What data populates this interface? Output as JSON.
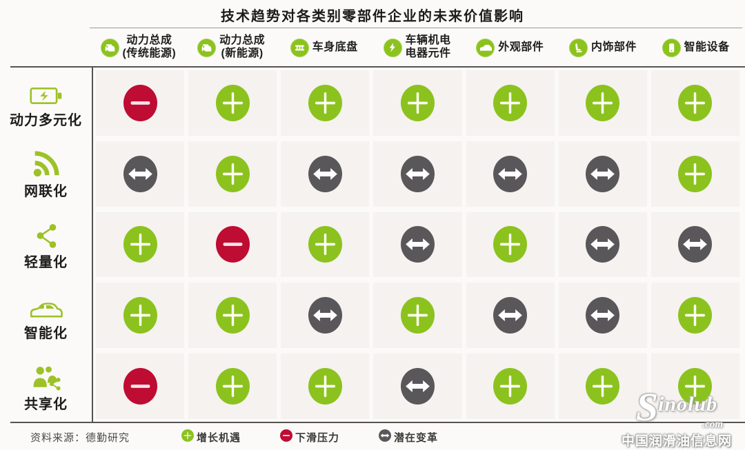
{
  "title": "技术趋势对各类别零部件企业的未来价值影响",
  "colors": {
    "green": "#8CC21E",
    "red": "#BE0C33",
    "gray": "#59575A",
    "icon_green": "#9CC227"
  },
  "table": {
    "columns": [
      {
        "icon": "engine-traditional-icon",
        "lines": [
          "动力总成",
          "(传统能源)"
        ]
      },
      {
        "icon": "engine-new-energy-icon",
        "lines": [
          "动力总成",
          "(新能源)"
        ]
      },
      {
        "icon": "chassis-icon",
        "lines": [
          "车身底盘"
        ]
      },
      {
        "icon": "electronics-icon",
        "lines": [
          "车辆机电",
          "电器元件"
        ]
      },
      {
        "icon": "exterior-parts-icon",
        "lines": [
          "外观部件"
        ]
      },
      {
        "icon": "interior-parts-icon",
        "lines": [
          "内饰部件"
        ]
      },
      {
        "icon": "smart-device-icon",
        "lines": [
          "智能设备"
        ]
      }
    ],
    "rows": [
      {
        "icon": "battery-icon",
        "label": "动力多元化"
      },
      {
        "icon": "wifi-icon",
        "label": "网联化"
      },
      {
        "icon": "lightweight-icon",
        "label": "轻量化"
      },
      {
        "icon": "smart-car-icon",
        "label": "智能化"
      },
      {
        "icon": "sharing-icon",
        "label": "共享化"
      }
    ],
    "matrix": [
      [
        "minus",
        "plus",
        "plus",
        "plus",
        "plus",
        "plus",
        "plus"
      ],
      [
        "change",
        "plus",
        "change",
        "change",
        "change",
        "change",
        "plus"
      ],
      [
        "plus",
        "minus",
        "plus",
        "change",
        "plus",
        "change",
        "change"
      ],
      [
        "plus",
        "plus",
        "change",
        "plus",
        "change",
        "change",
        "plus"
      ],
      [
        "minus",
        "plus",
        "plus",
        "change",
        "plus",
        "plus",
        "plus"
      ]
    ]
  },
  "legend": [
    {
      "symbol": "plus",
      "label": "增长机遇"
    },
    {
      "symbol": "minus",
      "label": "下滑压力"
    },
    {
      "symbol": "change",
      "label": "潜在变革"
    }
  ],
  "source": "资料来源：德勤研究",
  "watermark": {
    "brand_initial": "S",
    "brand_rest": "inolub",
    "domain": ".com",
    "caption": "中国润滑油信息网"
  },
  "chart_data": {
    "type": "table",
    "title": "技术趋势对各类别零部件企业的未来价值影响",
    "columns": [
      "动力总成(传统能源)",
      "动力总成(新能源)",
      "车身底盘",
      "车辆机电电器元件",
      "外观部件",
      "内饰部件",
      "智能设备"
    ],
    "rows": [
      "动力多元化",
      "网联化",
      "轻量化",
      "智能化",
      "共享化"
    ],
    "values": [
      [
        "下滑压力",
        "增长机遇",
        "增长机遇",
        "增长机遇",
        "增长机遇",
        "增长机遇",
        "增长机遇"
      ],
      [
        "潜在变革",
        "增长机遇",
        "潜在变革",
        "潜在变革",
        "潜在变革",
        "潜在变革",
        "增长机遇"
      ],
      [
        "增长机遇",
        "下滑压力",
        "增长机遇",
        "潜在变革",
        "增长机遇",
        "潜在变革",
        "潜在变革"
      ],
      [
        "增长机遇",
        "增长机遇",
        "潜在变革",
        "增长机遇",
        "潜在变革",
        "潜在变革",
        "增长机遇"
      ],
      [
        "下滑压力",
        "增长机遇",
        "增长机遇",
        "潜在变革",
        "增长机遇",
        "增长机遇",
        "增长机遇"
      ]
    ],
    "legend": {
      "增长机遇": "green plus circle",
      "下滑压力": "red minus circle",
      "潜在变革": "gray double-arrow circle"
    },
    "source": "资料来源：德勤研究"
  }
}
